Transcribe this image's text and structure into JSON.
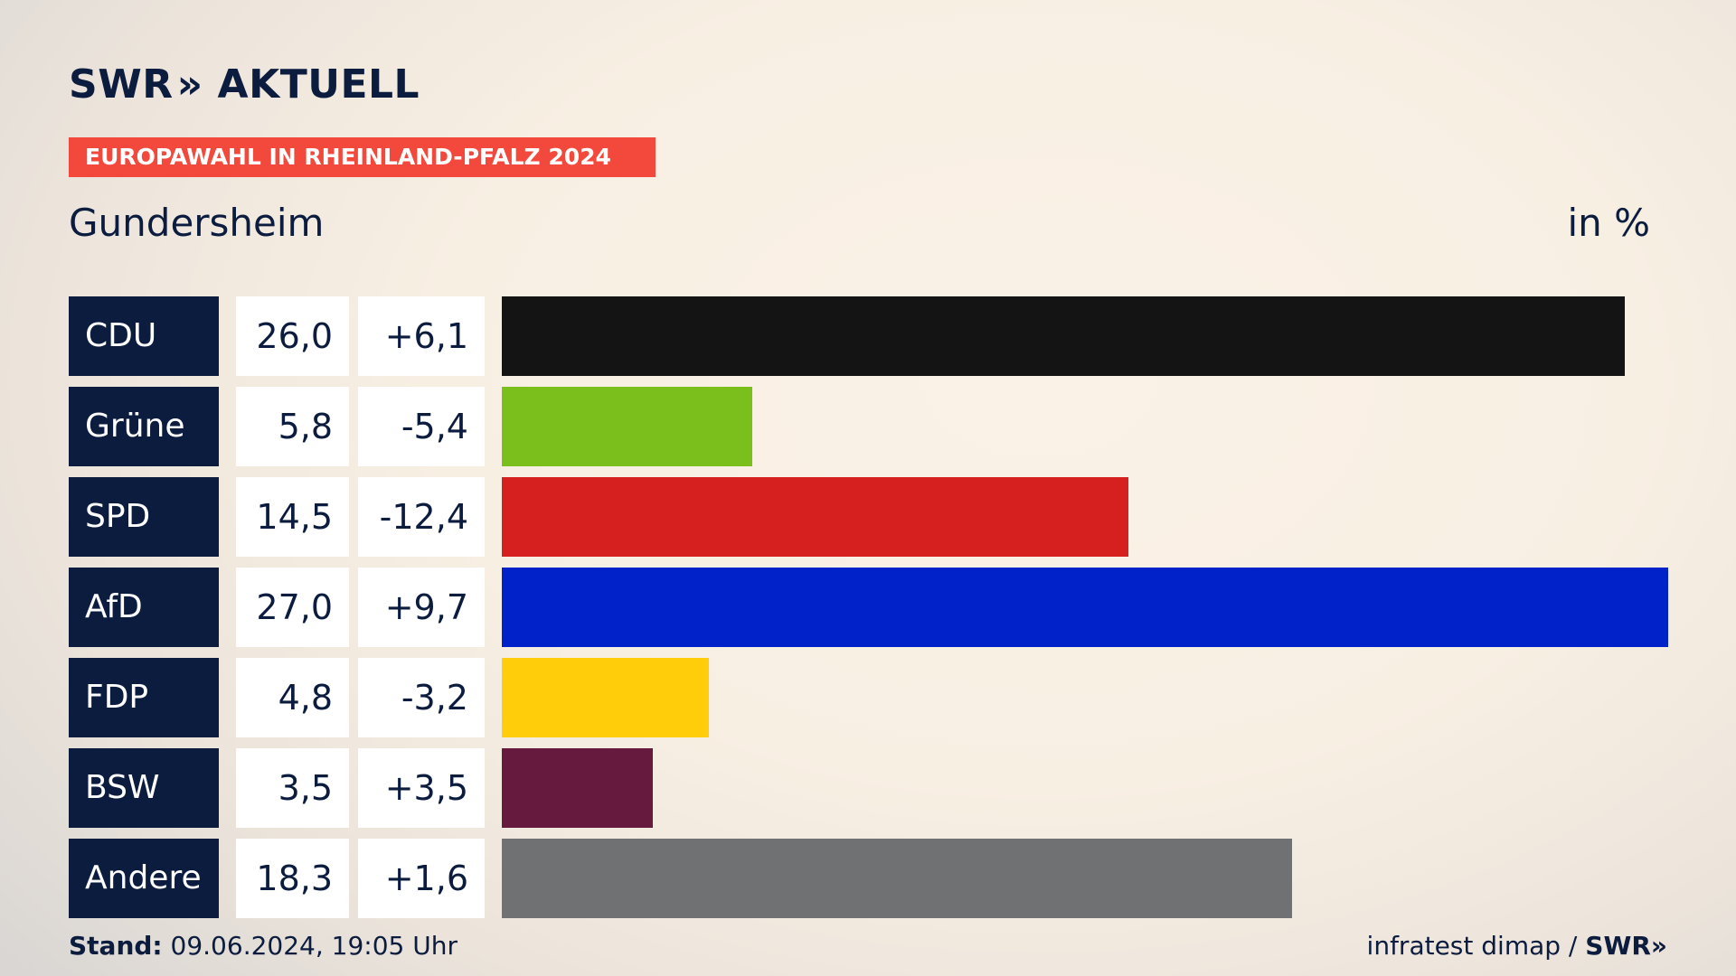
{
  "header": {
    "logo_text": "SWR",
    "logo_chevrons": "»",
    "logo_suffix": "AKTUELL",
    "banner": "EUROPAWAHL IN RHEINLAND-PFALZ 2024",
    "region": "Gundersheim",
    "unit": "in %"
  },
  "chart_data": {
    "type": "bar",
    "orientation": "horizontal",
    "categories": [
      "CDU",
      "Grüne",
      "SPD",
      "AfD",
      "FDP",
      "BSW",
      "Andere"
    ],
    "values": [
      26.0,
      5.8,
      14.5,
      27.0,
      4.8,
      3.5,
      18.3
    ],
    "value_labels": [
      "26,0",
      "5,8",
      "14,5",
      "27,0",
      "4,8",
      "3,5",
      "18,3"
    ],
    "change_labels": [
      "+6,1",
      "-5,4",
      "-12,4",
      "+9,7",
      "-3,2",
      "+3,5",
      "+1,6"
    ],
    "colors": [
      "#141414",
      "#7bbf1c",
      "#d61f1f",
      "#0022c8",
      "#ffcd0a",
      "#661a3d",
      "#707173"
    ],
    "xlim": [
      0,
      27.0
    ],
    "grid": false
  },
  "footer": {
    "stand_label": "Stand:",
    "stand_value": "09.06.2024, 19:05 Uhr",
    "source": "infratest dimap /",
    "source_logo": "SWR",
    "source_logo_chevrons": "»"
  }
}
